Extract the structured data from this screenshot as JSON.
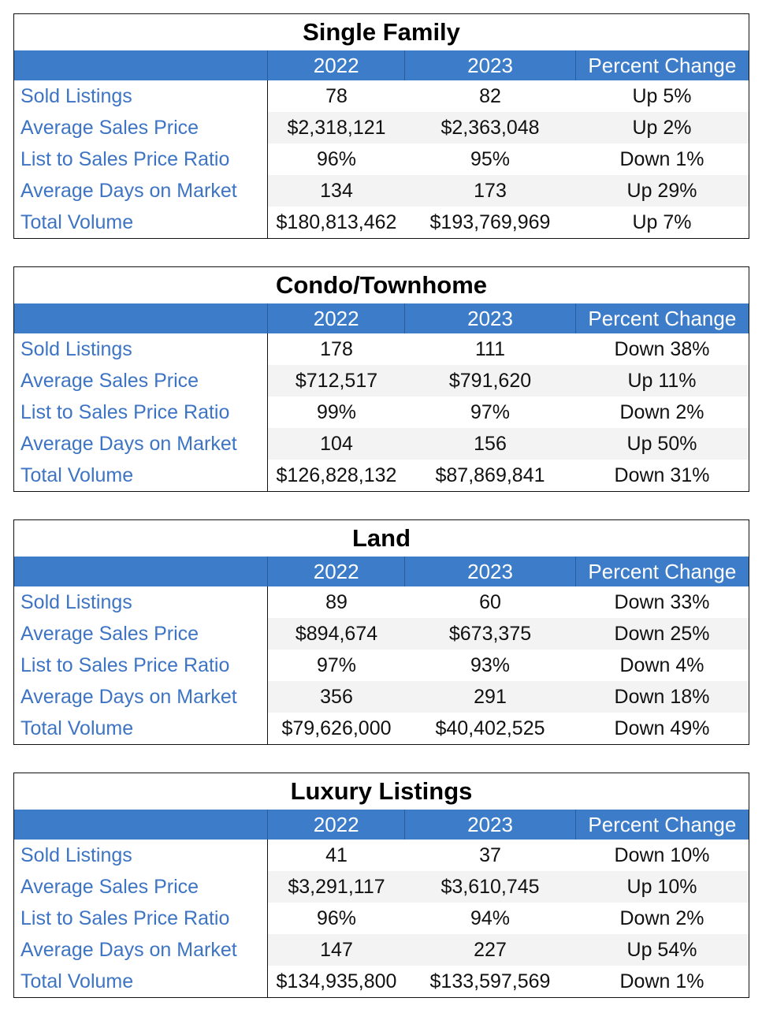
{
  "columns": [
    "",
    "2022",
    "2023",
    "Percent Change"
  ],
  "tables": [
    {
      "title": "Single Family",
      "rows": [
        {
          "label": "Sold Listings",
          "v2022": "78",
          "v2023": "82",
          "change": "Up 5%"
        },
        {
          "label": "Average Sales Price",
          "v2022": "$2,318,121",
          "v2023": "$2,363,048",
          "change": "Up 2%"
        },
        {
          "label": "List to Sales Price Ratio",
          "v2022": "96%",
          "v2023": "95%",
          "change": "Down 1%"
        },
        {
          "label": "Average Days on Market",
          "v2022": "134",
          "v2023": "173",
          "change": "Up 29%"
        },
        {
          "label": "Total Volume",
          "v2022": "$180,813,462",
          "v2023": "$193,769,969",
          "change": "Up 7%"
        }
      ]
    },
    {
      "title": "Condo/Townhome",
      "rows": [
        {
          "label": "Sold Listings",
          "v2022": "178",
          "v2023": "111",
          "change": "Down 38%"
        },
        {
          "label": "Average Sales Price",
          "v2022": "$712,517",
          "v2023": "$791,620",
          "change": "Up 11%"
        },
        {
          "label": "List to Sales Price Ratio",
          "v2022": "99%",
          "v2023": "97%",
          "change": "Down 2%"
        },
        {
          "label": "Average Days on Market",
          "v2022": "104",
          "v2023": "156",
          "change": "Up 50%"
        },
        {
          "label": "Total Volume",
          "v2022": "$126,828,132",
          "v2023": "$87,869,841",
          "change": "Down 31%"
        }
      ]
    },
    {
      "title": "Land",
      "rows": [
        {
          "label": "Sold Listings",
          "v2022": "89",
          "v2023": "60",
          "change": "Down 33%"
        },
        {
          "label": "Average Sales Price",
          "v2022": "$894,674",
          "v2023": "$673,375",
          "change": "Down 25%"
        },
        {
          "label": "List to Sales Price Ratio",
          "v2022": "97%",
          "v2023": "93%",
          "change": "Down 4%"
        },
        {
          "label": "Average Days on Market",
          "v2022": "356",
          "v2023": "291",
          "change": "Down 18%"
        },
        {
          "label": "Total Volume",
          "v2022": "$79,626,000",
          "v2023": "$40,402,525",
          "change": "Down 49%"
        }
      ]
    },
    {
      "title": "Luxury Listings",
      "rows": [
        {
          "label": "Sold Listings",
          "v2022": "41",
          "v2023": "37",
          "change": "Down 10%"
        },
        {
          "label": "Average Sales Price",
          "v2022": "$3,291,117",
          "v2023": "$3,610,745",
          "change": "Up 10%"
        },
        {
          "label": "List to Sales Price Ratio",
          "v2022": "96%",
          "v2023": "94%",
          "change": "Down 2%"
        },
        {
          "label": "Average Days on Market",
          "v2022": "147",
          "v2023": "227",
          "change": "Up 54%"
        },
        {
          "label": "Total Volume",
          "v2022": "$134,935,800",
          "v2023": "$133,597,569",
          "change": "Down 1%"
        }
      ]
    }
  ]
}
